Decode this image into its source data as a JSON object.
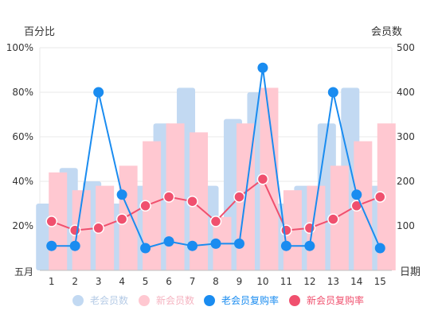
{
  "chart_data": {
    "type": "bar",
    "left_axis_title": "百分比",
    "right_axis_title": "会员数",
    "x_axis_title": "日期",
    "x_axis_corner_label": "五月",
    "categories": [
      "1",
      "2",
      "3",
      "4",
      "5",
      "6",
      "7",
      "8",
      "9",
      "10",
      "11",
      "12",
      "13",
      "14",
      "15"
    ],
    "left_axis": {
      "min": 0,
      "max": 100,
      "ticks": [
        "0%",
        "20%",
        "40%",
        "60%",
        "80%",
        "100%"
      ],
      "tick_values": [
        0,
        20,
        40,
        60,
        80,
        100
      ]
    },
    "right_axis": {
      "min": 0,
      "max": 500,
      "ticks": [
        "0",
        "100",
        "200",
        "300",
        "400",
        "500"
      ],
      "tick_values": [
        0,
        100,
        200,
        300,
        400,
        500
      ]
    },
    "grid": true,
    "legend_position": "bottom",
    "bar_series": [
      {
        "name": "老会员数",
        "axis": "right",
        "color": "#c2d9f2",
        "values": [
          150,
          230,
          200,
          150,
          190,
          330,
          410,
          190,
          340,
          400,
          150,
          190,
          330,
          410,
          190
        ]
      },
      {
        "name": "新会员数",
        "axis": "right",
        "color": "#ffc8d1",
        "values": [
          220,
          180,
          190,
          235,
          290,
          330,
          310,
          120,
          330,
          410,
          180,
          190,
          235,
          290,
          330
        ]
      }
    ],
    "line_series": [
      {
        "name": "老会员复购率",
        "axis": "left",
        "color": "#1a8cf0",
        "values": [
          11,
          11,
          80,
          34,
          10,
          13,
          11,
          12,
          12,
          91,
          11,
          11,
          80,
          34,
          10
        ]
      },
      {
        "name": "新会员复购率",
        "axis": "left",
        "color": "#f0506e",
        "values": [
          22,
          18,
          19,
          23,
          29,
          33,
          31,
          22,
          33,
          41,
          18,
          19,
          23,
          29,
          33
        ]
      }
    ]
  },
  "legend": {
    "items": [
      {
        "label": "老会员数",
        "color": "#c2d9f2",
        "text_color": "#b5cbe6"
      },
      {
        "label": "新会员数",
        "color": "#ffc8d1",
        "text_color": "#f5b3c0"
      },
      {
        "label": "老会员复购率",
        "color": "#1a8cf0",
        "text_color": "#1a8cf0"
      },
      {
        "label": "新会员复购率",
        "color": "#f0506e",
        "text_color": "#f0506e"
      }
    ]
  }
}
